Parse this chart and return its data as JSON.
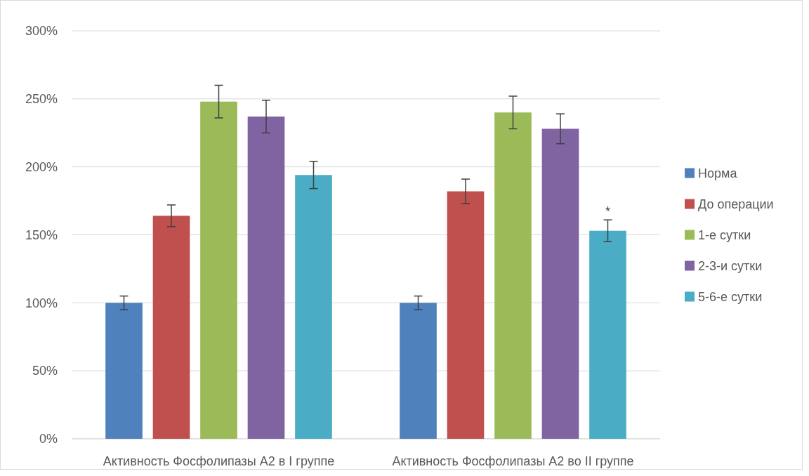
{
  "chart_data": {
    "type": "bar",
    "categories": [
      "Активность Фосфолипазы А2 в I группе",
      "Активность Фосфолипазы А2 во II группе"
    ],
    "series": [
      {
        "name": "Норма",
        "color": "#4f81bd",
        "values": [
          100,
          100
        ],
        "errors": [
          5,
          5
        ]
      },
      {
        "name": "До операции",
        "color": "#c0504d",
        "values": [
          164,
          182
        ],
        "errors": [
          8,
          9
        ]
      },
      {
        "name": "1-е сутки",
        "color": "#9bbb59",
        "values": [
          248,
          240
        ],
        "errors": [
          12,
          12
        ]
      },
      {
        "name": "2-3-и сутки",
        "color": "#8064a2",
        "values": [
          237,
          228
        ],
        "errors": [
          12,
          11
        ]
      },
      {
        "name": "5-6-е сутки",
        "color": "#4bacc6",
        "values": [
          194,
          153
        ],
        "errors": [
          10,
          8
        ]
      }
    ],
    "ylim": [
      0,
      300
    ],
    "yticks": [
      {
        "value": 0,
        "label": "0%"
      },
      {
        "value": 50,
        "label": "50%"
      },
      {
        "value": 100,
        "label": "100%"
      },
      {
        "value": 150,
        "label": "150%"
      },
      {
        "value": 200,
        "label": "200%"
      },
      {
        "value": 250,
        "label": "250%"
      },
      {
        "value": 300,
        "label": "300%"
      }
    ],
    "grid": "y",
    "legend": "right",
    "annotations": [
      "*"
    ]
  }
}
